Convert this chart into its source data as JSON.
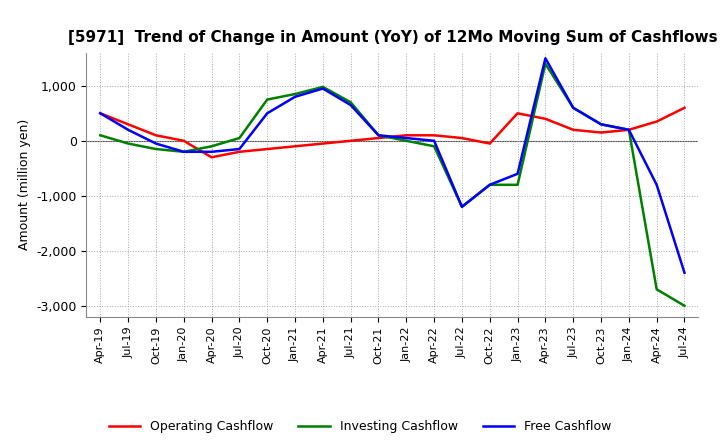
{
  "title": "[5971]  Trend of Change in Amount (YoY) of 12Mo Moving Sum of Cashflows",
  "ylabel": "Amount (million yen)",
  "x_labels": [
    "Apr-19",
    "Jul-19",
    "Oct-19",
    "Jan-20",
    "Apr-20",
    "Jul-20",
    "Oct-20",
    "Jan-21",
    "Apr-21",
    "Jul-21",
    "Oct-21",
    "Jan-22",
    "Apr-22",
    "Jul-22",
    "Oct-22",
    "Jan-23",
    "Apr-23",
    "Jul-23",
    "Oct-23",
    "Jan-24",
    "Apr-24",
    "Jul-24"
  ],
  "operating": [
    500,
    300,
    100,
    0,
    -300,
    -200,
    -150,
    -100,
    -50,
    0,
    50,
    100,
    100,
    50,
    -50,
    500,
    400,
    200,
    150,
    200,
    350,
    600
  ],
  "investing": [
    100,
    -50,
    -150,
    -200,
    -100,
    50,
    750,
    850,
    980,
    700,
    100,
    0,
    -100,
    -1200,
    -800,
    -800,
    1400,
    600,
    300,
    200,
    -2700,
    -3000
  ],
  "free": [
    500,
    200,
    -50,
    -200,
    -200,
    -150,
    500,
    800,
    950,
    650,
    100,
    50,
    0,
    -1200,
    -800,
    -600,
    1500,
    600,
    300,
    200,
    -800,
    -2400
  ],
  "ylim": [
    -3200,
    1600
  ],
  "yticks": [
    -3000,
    -2000,
    -1000,
    0,
    1000
  ],
  "colors": {
    "operating": "#ff0000",
    "investing": "#008000",
    "free": "#0000ff"
  },
  "legend_labels": [
    "Operating Cashflow",
    "Investing Cashflow",
    "Free Cashflow"
  ],
  "grid_color": "#aaaaaa",
  "background_color": "#ffffff"
}
